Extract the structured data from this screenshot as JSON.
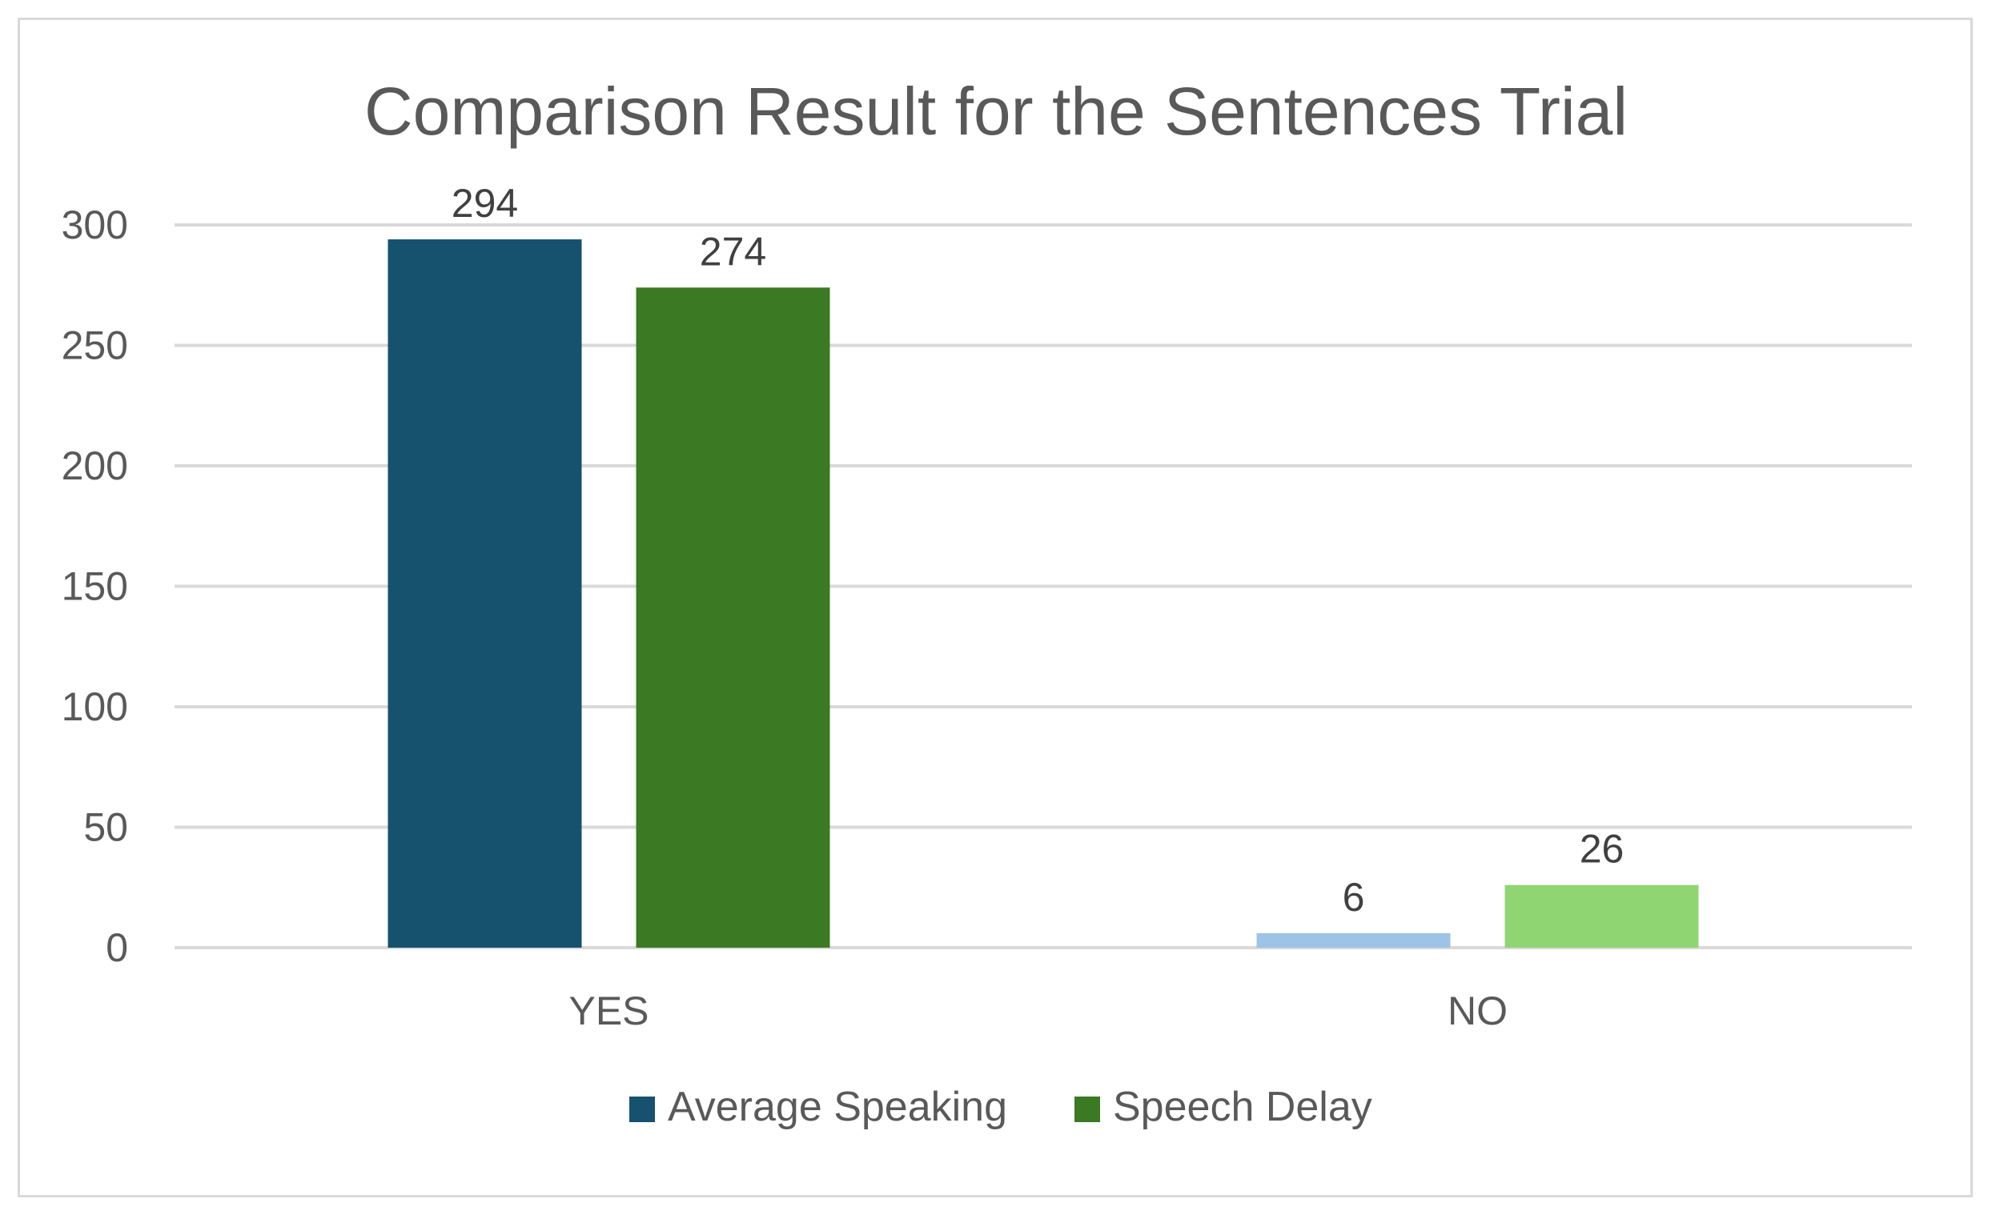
{
  "chart_data": {
    "type": "bar",
    "title": "Comparison Result for the Sentences Trial",
    "xlabel": "",
    "ylabel": "",
    "categories": [
      "YES",
      "NO"
    ],
    "ylim": [
      0,
      300
    ],
    "yticks": [
      0,
      50,
      100,
      150,
      200,
      250,
      300
    ],
    "grid": true,
    "legend_position": "bottom",
    "series": [
      {
        "name": "Average Speaking",
        "values": [
          294,
          6
        ],
        "colors": [
          "#16516e",
          "#9dc3e6"
        ]
      },
      {
        "name": "Speech Delay",
        "values": [
          274,
          26
        ],
        "colors": [
          "#3b7a23",
          "#8fd672"
        ]
      }
    ],
    "legend_colors": [
      "#16516e",
      "#3b7a23"
    ]
  }
}
